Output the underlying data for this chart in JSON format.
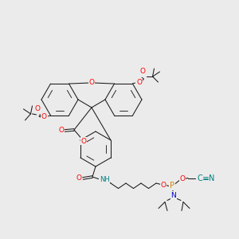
{
  "background_color": "#ebebeb",
  "atom_colors": {
    "O": "#ff0000",
    "N": "#0000cd",
    "P": "#cc8800",
    "CN_color": "#008080",
    "H_color": "#008080",
    "C": "#1a1a1a"
  },
  "bond_lw": 0.75,
  "ring_lw": 0.75,
  "font_size": 6.5
}
